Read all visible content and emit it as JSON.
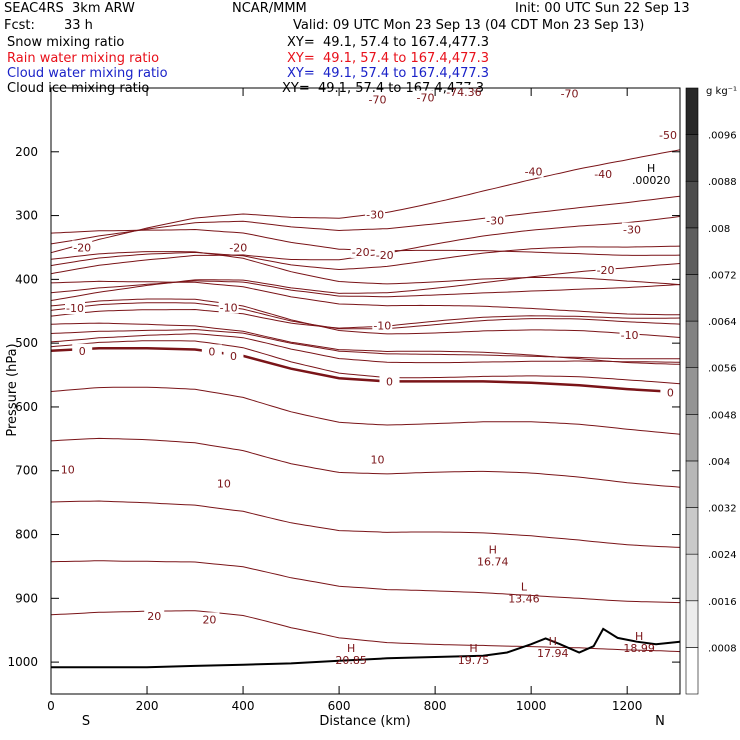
{
  "header": {
    "model": "SEAC4RS  3km ARW",
    "org": "NCAR/MMM",
    "init": "Init: 00 UTC Sun 22 Sep 13",
    "fcst_label": "Fcst:",
    "fcst_value": "33 h",
    "valid": "Valid: 09 UTC Mon 23 Sep 13 (04 CDT Mon 23 Sep 13)"
  },
  "fields": [
    {
      "label": "Snow mixing ratio",
      "xy": "XY=  49.1, 57.4 to 167.4,477.3",
      "color": "#000000"
    },
    {
      "label": "Rain water mixing ratio",
      "xy": "XY=  49.1, 57.4 to 167.4,477.3",
      "color": "#e8101a"
    },
    {
      "label": "Cloud water mixing ratio",
      "xy": "XY=  49.1, 57.4 to 167.4,477.3",
      "color": "#1a22c8"
    },
    {
      "label": "Cloud ice mixing ratio",
      "xy": "XY=  49.1, 57.4 to 167.4,477.3",
      "color": "#000000"
    }
  ],
  "colorbar": {
    "unit": "g kg⁻¹",
    "ticks": [
      ".0008",
      ".0016",
      ".0024",
      ".0032",
      ".004",
      ".0048",
      ".0056",
      ".0064",
      ".0072",
      ".008",
      ".0088",
      ".0096"
    ]
  },
  "chart_data": {
    "type": "contour cross-section",
    "xlabel": "Distance (km)",
    "ylabel": "Pressure (hPa)",
    "xlim": [
      0,
      1310
    ],
    "ylim": [
      1050,
      100
    ],
    "x_ticks": [
      0,
      200,
      400,
      600,
      800,
      1000,
      1200
    ],
    "y_ticks": [
      200,
      300,
      400,
      500,
      600,
      700,
      800,
      900,
      1000
    ],
    "end_labels": {
      "left": "S",
      "right": "N"
    },
    "isotherm_interval_C": 5,
    "freezing_level": [
      [
        0,
        512
      ],
      [
        100,
        508
      ],
      [
        200,
        508
      ],
      [
        300,
        510
      ],
      [
        400,
        520
      ],
      [
        500,
        540
      ],
      [
        600,
        555
      ],
      [
        700,
        560
      ],
      [
        800,
        560
      ],
      [
        900,
        560
      ],
      [
        1000,
        562
      ],
      [
        1100,
        566
      ],
      [
        1200,
        572
      ],
      [
        1310,
        577
      ]
    ],
    "terrain": [
      [
        0,
        1008
      ],
      [
        200,
        1008
      ],
      [
        300,
        1006
      ],
      [
        400,
        1004
      ],
      [
        500,
        1002
      ],
      [
        600,
        998
      ],
      [
        700,
        994
      ],
      [
        800,
        992
      ],
      [
        900,
        990
      ],
      [
        950,
        985
      ],
      [
        1000,
        972
      ],
      [
        1030,
        963
      ],
      [
        1060,
        972
      ],
      [
        1100,
        985
      ],
      [
        1130,
        975
      ],
      [
        1150,
        948
      ],
      [
        1180,
        962
      ],
      [
        1220,
        968
      ],
      [
        1260,
        972
      ],
      [
        1310,
        968
      ]
    ],
    "contour_labels": [
      {
        "text": "-70",
        "x": 780,
        "p": 115
      },
      {
        "text": "-70",
        "x": 680,
        "p": 118
      },
      {
        "text": "-70",
        "x": 1080,
        "p": 109
      },
      {
        "text": "-74.36",
        "x": 860,
        "p": 106
      },
      {
        "text": "-50",
        "x": 1285,
        "p": 174
      },
      {
        "text": "-40",
        "x": 1005,
        "p": 231
      },
      {
        "text": "-40",
        "x": 1150,
        "p": 235
      },
      {
        "text": "-30",
        "x": 675,
        "p": 298
      },
      {
        "text": "-30",
        "x": 925,
        "p": 308
      },
      {
        "text": "-30",
        "x": 1210,
        "p": 322
      },
      {
        "text": "-20",
        "x": 65,
        "p": 350
      },
      {
        "text": "-20",
        "x": 390,
        "p": 350
      },
      {
        "text": "-20",
        "x": 645,
        "p": 357
      },
      {
        "text": "-20",
        "x": 695,
        "p": 362
      },
      {
        "text": "-20",
        "x": 1155,
        "p": 385
      },
      {
        "text": "-10",
        "x": 50,
        "p": 445
      },
      {
        "text": "-10",
        "x": 370,
        "p": 444
      },
      {
        "text": "-10",
        "x": 690,
        "p": 472
      },
      {
        "text": "-10",
        "x": 1205,
        "p": 487
      },
      {
        "text": "0",
        "x": 65,
        "p": 512
      },
      {
        "text": "0",
        "x": 335,
        "p": 513
      },
      {
        "text": "0",
        "x": 380,
        "p": 520
      },
      {
        "text": "0",
        "x": 705,
        "p": 560
      },
      {
        "text": "0",
        "x": 1290,
        "p": 577
      },
      {
        "text": "10",
        "x": 35,
        "p": 698
      },
      {
        "text": "10",
        "x": 680,
        "p": 682
      },
      {
        "text": "10",
        "x": 360,
        "p": 720
      },
      {
        "text": "20",
        "x": 215,
        "p": 928
      },
      {
        "text": "20",
        "x": 330,
        "p": 933
      }
    ],
    "extrema": [
      {
        "type": "H",
        "value": ".00020",
        "x": 1250,
        "p": 232
      },
      {
        "type": "H",
        "value": "16.74",
        "x": 920,
        "p": 830
      },
      {
        "type": "L",
        "value": "13.46",
        "x": 985,
        "p": 888
      },
      {
        "type": "H",
        "value": "20.85",
        "x": 625,
        "p": 984
      },
      {
        "type": "H",
        "value": "19.75",
        "x": 880,
        "p": 984
      },
      {
        "type": "H",
        "value": "17.94",
        "x": 1045,
        "p": 973
      },
      {
        "type": "H",
        "value": "18.99",
        "x": 1225,
        "p": 965
      }
    ]
  }
}
